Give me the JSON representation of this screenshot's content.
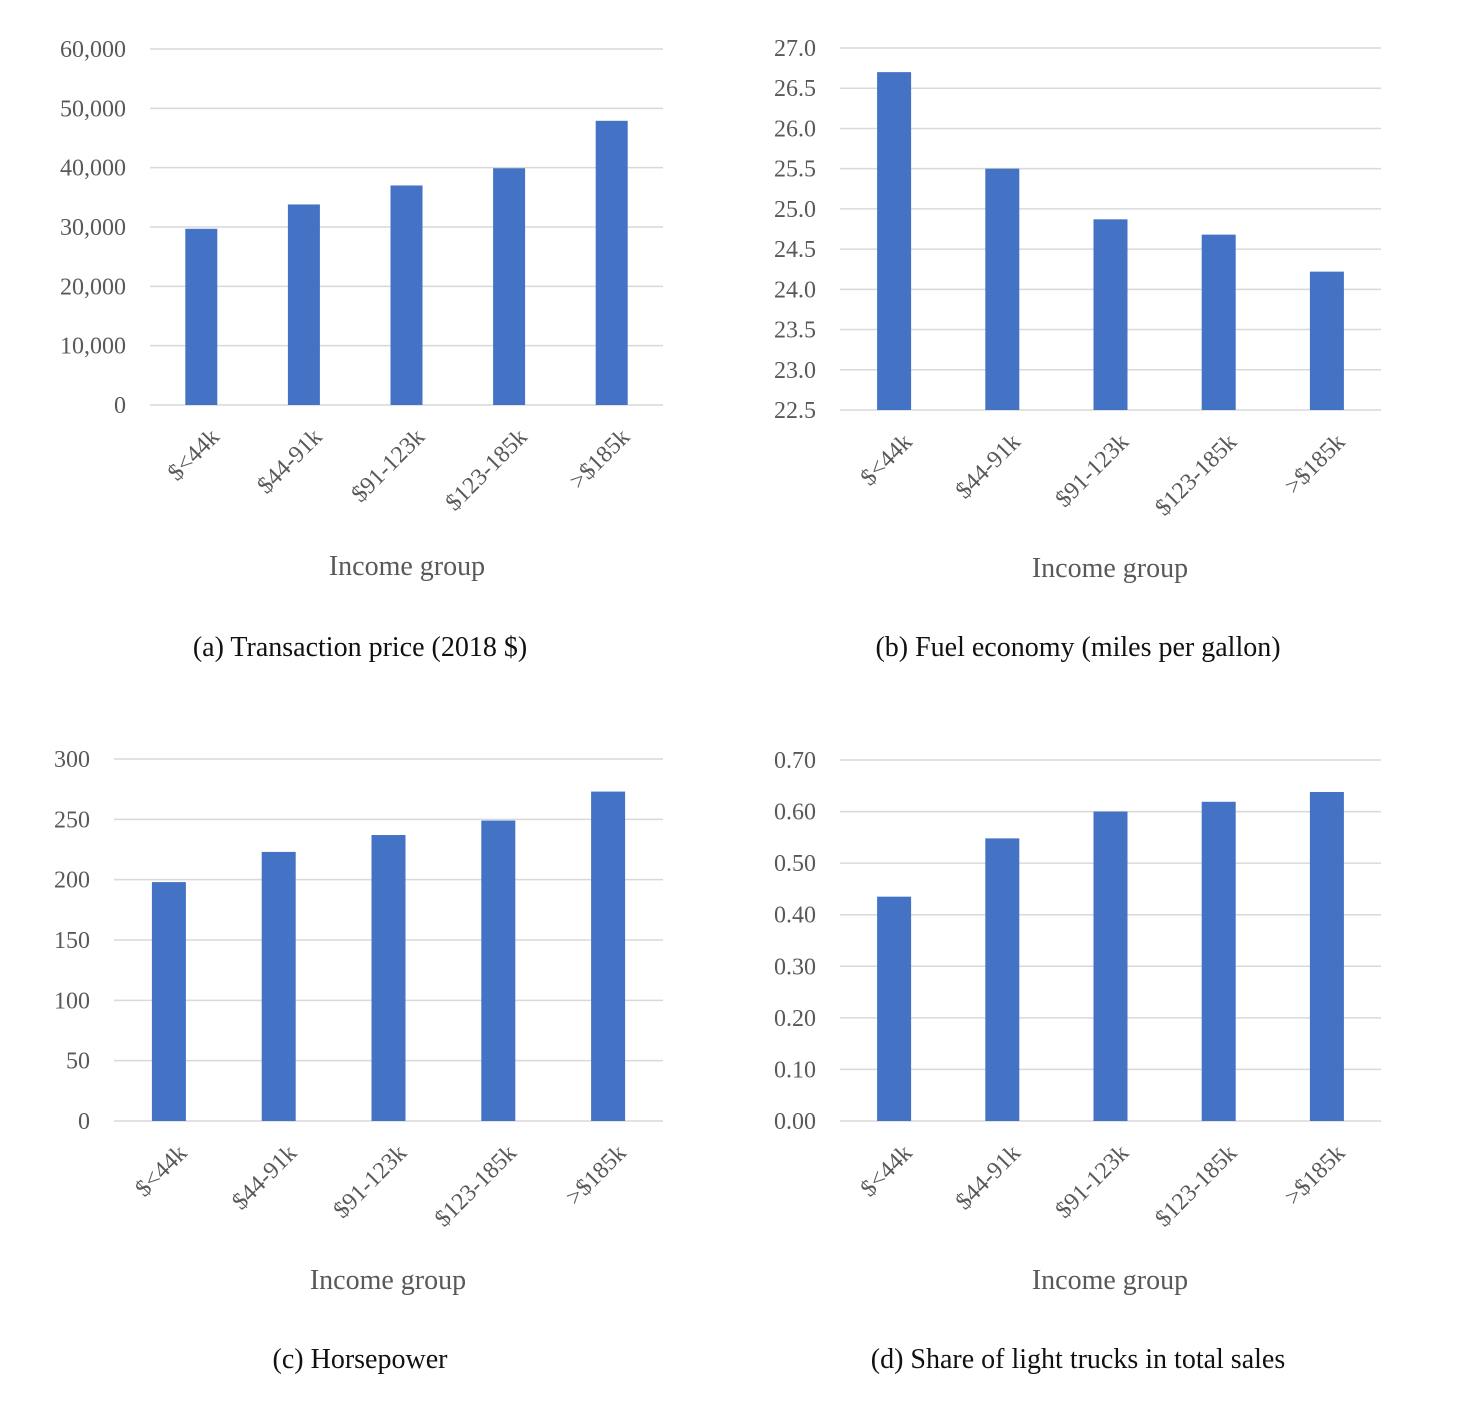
{
  "colors": {
    "bar": "#4472c4",
    "grid": "#d9d9d9",
    "tick_text": "#595959",
    "caption_text": "#111111"
  },
  "chart_data": [
    {
      "id": "a",
      "type": "bar",
      "caption": "(a) Transaction price (2018 $)",
      "xlabel": "Income group",
      "categories": [
        "$<44k",
        "$44-91k",
        "$91-123k",
        "$123-185k",
        ">$185k"
      ],
      "values": [
        29700,
        33800,
        37000,
        39900,
        47900
      ],
      "ylim": [
        0,
        60000
      ],
      "yticks": [
        "0",
        "10,000",
        "20,000",
        "30,000",
        "40,000",
        "50,000",
        "60,000"
      ],
      "grid": true
    },
    {
      "id": "b",
      "type": "bar",
      "caption": "(b) Fuel economy (miles per gallon)",
      "xlabel": "Income group",
      "categories": [
        "$<44k",
        "$44-91k",
        "$91-123k",
        "$123-185k",
        ">$185k"
      ],
      "values": [
        26.7,
        25.5,
        24.87,
        24.68,
        24.22
      ],
      "ylim": [
        22.5,
        27.0
      ],
      "yticks": [
        "22.5",
        "23.0",
        "23.5",
        "24.0",
        "24.5",
        "25.0",
        "25.5",
        "26.0",
        "26.5",
        "27.0"
      ],
      "grid": true
    },
    {
      "id": "c",
      "type": "bar",
      "caption": "(c) Horsepower",
      "xlabel": "Income group",
      "categories": [
        "$<44k",
        "$44-91k",
        "$91-123k",
        "$123-185k",
        ">$185k"
      ],
      "values": [
        198,
        223,
        237,
        249,
        273
      ],
      "ylim": [
        0,
        300
      ],
      "yticks": [
        "0",
        "50",
        "100",
        "150",
        "200",
        "250",
        "300"
      ],
      "grid": true
    },
    {
      "id": "d",
      "type": "bar",
      "caption": "(d) Share of light trucks in total sales",
      "xlabel": "Income group",
      "categories": [
        "$<44k",
        "$44-91k",
        "$91-123k",
        "$123-185k",
        ">$185k"
      ],
      "values": [
        0.435,
        0.548,
        0.6,
        0.619,
        0.638
      ],
      "ylim": [
        0,
        0.7
      ],
      "yticks": [
        "0.00",
        "0.10",
        "0.20",
        "0.30",
        "0.40",
        "0.50",
        "0.60",
        "0.70"
      ],
      "grid": true
    }
  ]
}
